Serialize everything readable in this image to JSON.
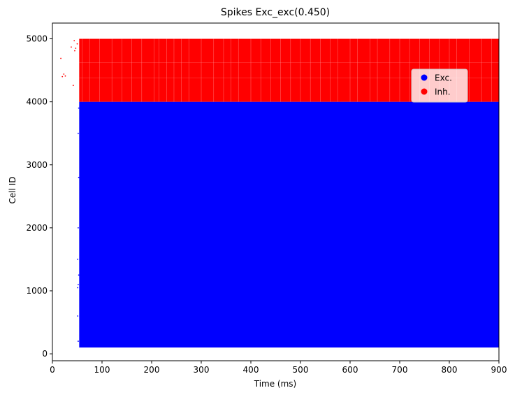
{
  "chart_data": {
    "type": "scatter",
    "title": "Spikes Exc_exc(0.450)",
    "xlabel": "Time (ms)",
    "ylabel": "Cell ID",
    "xlim": [
      0,
      900
    ],
    "ylim": [
      -110,
      5250
    ],
    "xticks": [
      0,
      100,
      200,
      300,
      400,
      500,
      600,
      700,
      800,
      900
    ],
    "yticks": [
      0,
      1000,
      2000,
      3000,
      4000,
      5000
    ],
    "legend": {
      "placement": "upper-right",
      "entries": [
        {
          "label": "Exc.",
          "color": "#0000ff"
        },
        {
          "label": "Inh.",
          "color": "#ff0000"
        }
      ]
    },
    "series": [
      {
        "name": "Exc.",
        "color": "#0000ff",
        "dense_region": {
          "x": [
            54,
            900
          ],
          "y": [
            100,
            4000
          ]
        },
        "onset_points": [
          [
            51,
            1050
          ],
          [
            52,
            1100
          ],
          [
            53,
            1250
          ],
          [
            51,
            1500
          ],
          [
            52,
            2000
          ],
          [
            53,
            2800
          ],
          [
            52,
            3500
          ],
          [
            53,
            3900
          ],
          [
            51,
            600
          ],
          [
            52,
            200
          ]
        ]
      },
      {
        "name": "Inh.",
        "color": "#ff0000",
        "dense_region": {
          "x": [
            54,
            900
          ],
          "y": [
            4000,
            5000
          ]
        },
        "early_points": [
          [
            17,
            4690
          ],
          [
            20,
            4400
          ],
          [
            23,
            4440
          ],
          [
            26,
            4410
          ],
          [
            38,
            4870
          ],
          [
            44,
            4970
          ],
          [
            47,
            4850
          ],
          [
            50,
            4920
          ],
          [
            42,
            4260
          ],
          [
            45,
            4810
          ]
        ]
      }
    ]
  }
}
